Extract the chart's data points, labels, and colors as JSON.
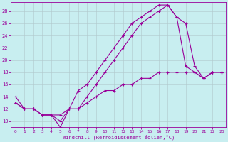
{
  "xlabel": "Windchill (Refroidissement éolien,°C)",
  "background_color": "#c8eef0",
  "line_color": "#990099",
  "xlim": [
    -0.5,
    23.5
  ],
  "ylim": [
    9,
    29.5
  ],
  "xticks": [
    0,
    1,
    2,
    3,
    4,
    5,
    6,
    7,
    8,
    9,
    10,
    11,
    12,
    13,
    14,
    15,
    16,
    17,
    18,
    19,
    20,
    21,
    22,
    23
  ],
  "yticks": [
    10,
    12,
    14,
    16,
    18,
    20,
    22,
    24,
    26,
    28
  ],
  "grid_color": "#b0c8cc",
  "line1_x": [
    0,
    1,
    2,
    3,
    4,
    5,
    6,
    7,
    8,
    9,
    10,
    11,
    12,
    13,
    14,
    15,
    16,
    17,
    18,
    19,
    20,
    21,
    22,
    23
  ],
  "line1_y": [
    14,
    12,
    12,
    11,
    11,
    10,
    12,
    15,
    16,
    18,
    20,
    22,
    24,
    26,
    27,
    28,
    29,
    29,
    27,
    19,
    18,
    17,
    18,
    18
  ],
  "line2_x": [
    0,
    1,
    2,
    3,
    4,
    5,
    6,
    7,
    8,
    9,
    10,
    11,
    12,
    13,
    14,
    15,
    16,
    17,
    18,
    19,
    20,
    21,
    22,
    23
  ],
  "line2_y": [
    13,
    12,
    12,
    11,
    11,
    9,
    12,
    12,
    14,
    16,
    18,
    20,
    22,
    24,
    26,
    27,
    28,
    29,
    27,
    26,
    19,
    17,
    18,
    18
  ],
  "line3_x": [
    0,
    1,
    2,
    3,
    4,
    5,
    6,
    7,
    8,
    9,
    10,
    11,
    12,
    13,
    14,
    15,
    16,
    17,
    18,
    19,
    20,
    21,
    22,
    23
  ],
  "line3_y": [
    13,
    12,
    12,
    11,
    11,
    11,
    12,
    12,
    13,
    14,
    15,
    15,
    16,
    16,
    17,
    17,
    18,
    18,
    18,
    18,
    18,
    17,
    18,
    18
  ]
}
